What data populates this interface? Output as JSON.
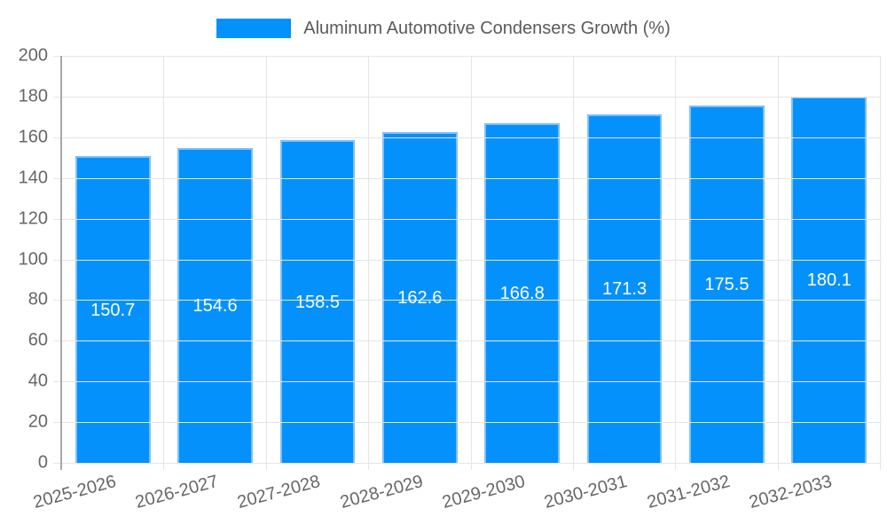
{
  "chart_data": {
    "type": "bar",
    "title": "Aluminum Automotive Condensers Growth (%)",
    "legend_label": "Aluminum Automotive Condensers Growth (%)",
    "legend_position": "top",
    "categories": [
      "2025-2026",
      "2026-2027",
      "2027-2028",
      "2028-2029",
      "2029-2030",
      "2030-2031",
      "2031-2032",
      "2032-2033"
    ],
    "series": [
      {
        "name": "Aluminum Automotive Condensers Growth (%)",
        "values": [
          150.7,
          154.6,
          158.5,
          162.6,
          166.8,
          171.3,
          175.5,
          180.1
        ]
      }
    ],
    "xlabel": "",
    "ylabel": "",
    "ylim": [
      0,
      200
    ],
    "ytick_step": 20,
    "grid": true,
    "bar_labels_inside": true,
    "x_label_rotation_deg": -15,
    "colors": {
      "bar": "#0591fb",
      "bar_border": "#7ec0f9",
      "bar_label": "#ffffff",
      "grid": "#e5e5e5",
      "axis": "#a8a8a8",
      "tick_text": "#666666",
      "legend_text": "#5a5a5a",
      "background": "#ffffff"
    }
  }
}
